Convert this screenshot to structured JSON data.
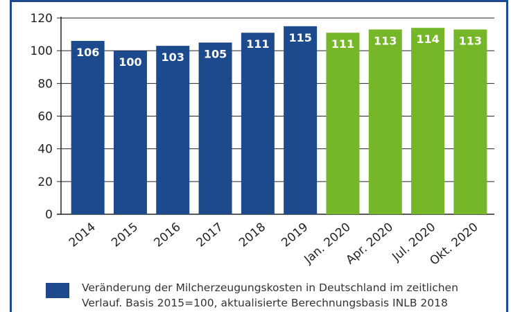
{
  "chart_data": {
    "type": "bar",
    "categories": [
      "2014",
      "2015",
      "2016",
      "2017",
      "2018",
      "2019",
      "Jan. 2020",
      "Apr. 2020",
      "Jul. 2020",
      "Okt. 2020"
    ],
    "values": [
      106,
      100,
      103,
      105,
      111,
      115,
      111,
      113,
      114,
      113
    ],
    "bar_colors": [
      "#1d4a8c",
      "#1d4a8c",
      "#1d4a8c",
      "#1d4a8c",
      "#1d4a8c",
      "#1d4a8c",
      "#76b72a",
      "#76b72a",
      "#76b72a",
      "#76b72a"
    ],
    "ylim": [
      0,
      120
    ],
    "yticks": [
      0,
      20,
      40,
      60,
      80,
      100,
      120
    ],
    "grid": true,
    "data_labels": true,
    "legend": {
      "position": "bottom",
      "color": "#1d4a8c",
      "text_lines": [
        "Veränderung der Milcherzeugungskosten in Deutschland im zeitlichen",
        "Verlauf. Basis 2015=100, aktualisierte Berechnungsbasis INLB 2018"
      ]
    }
  }
}
